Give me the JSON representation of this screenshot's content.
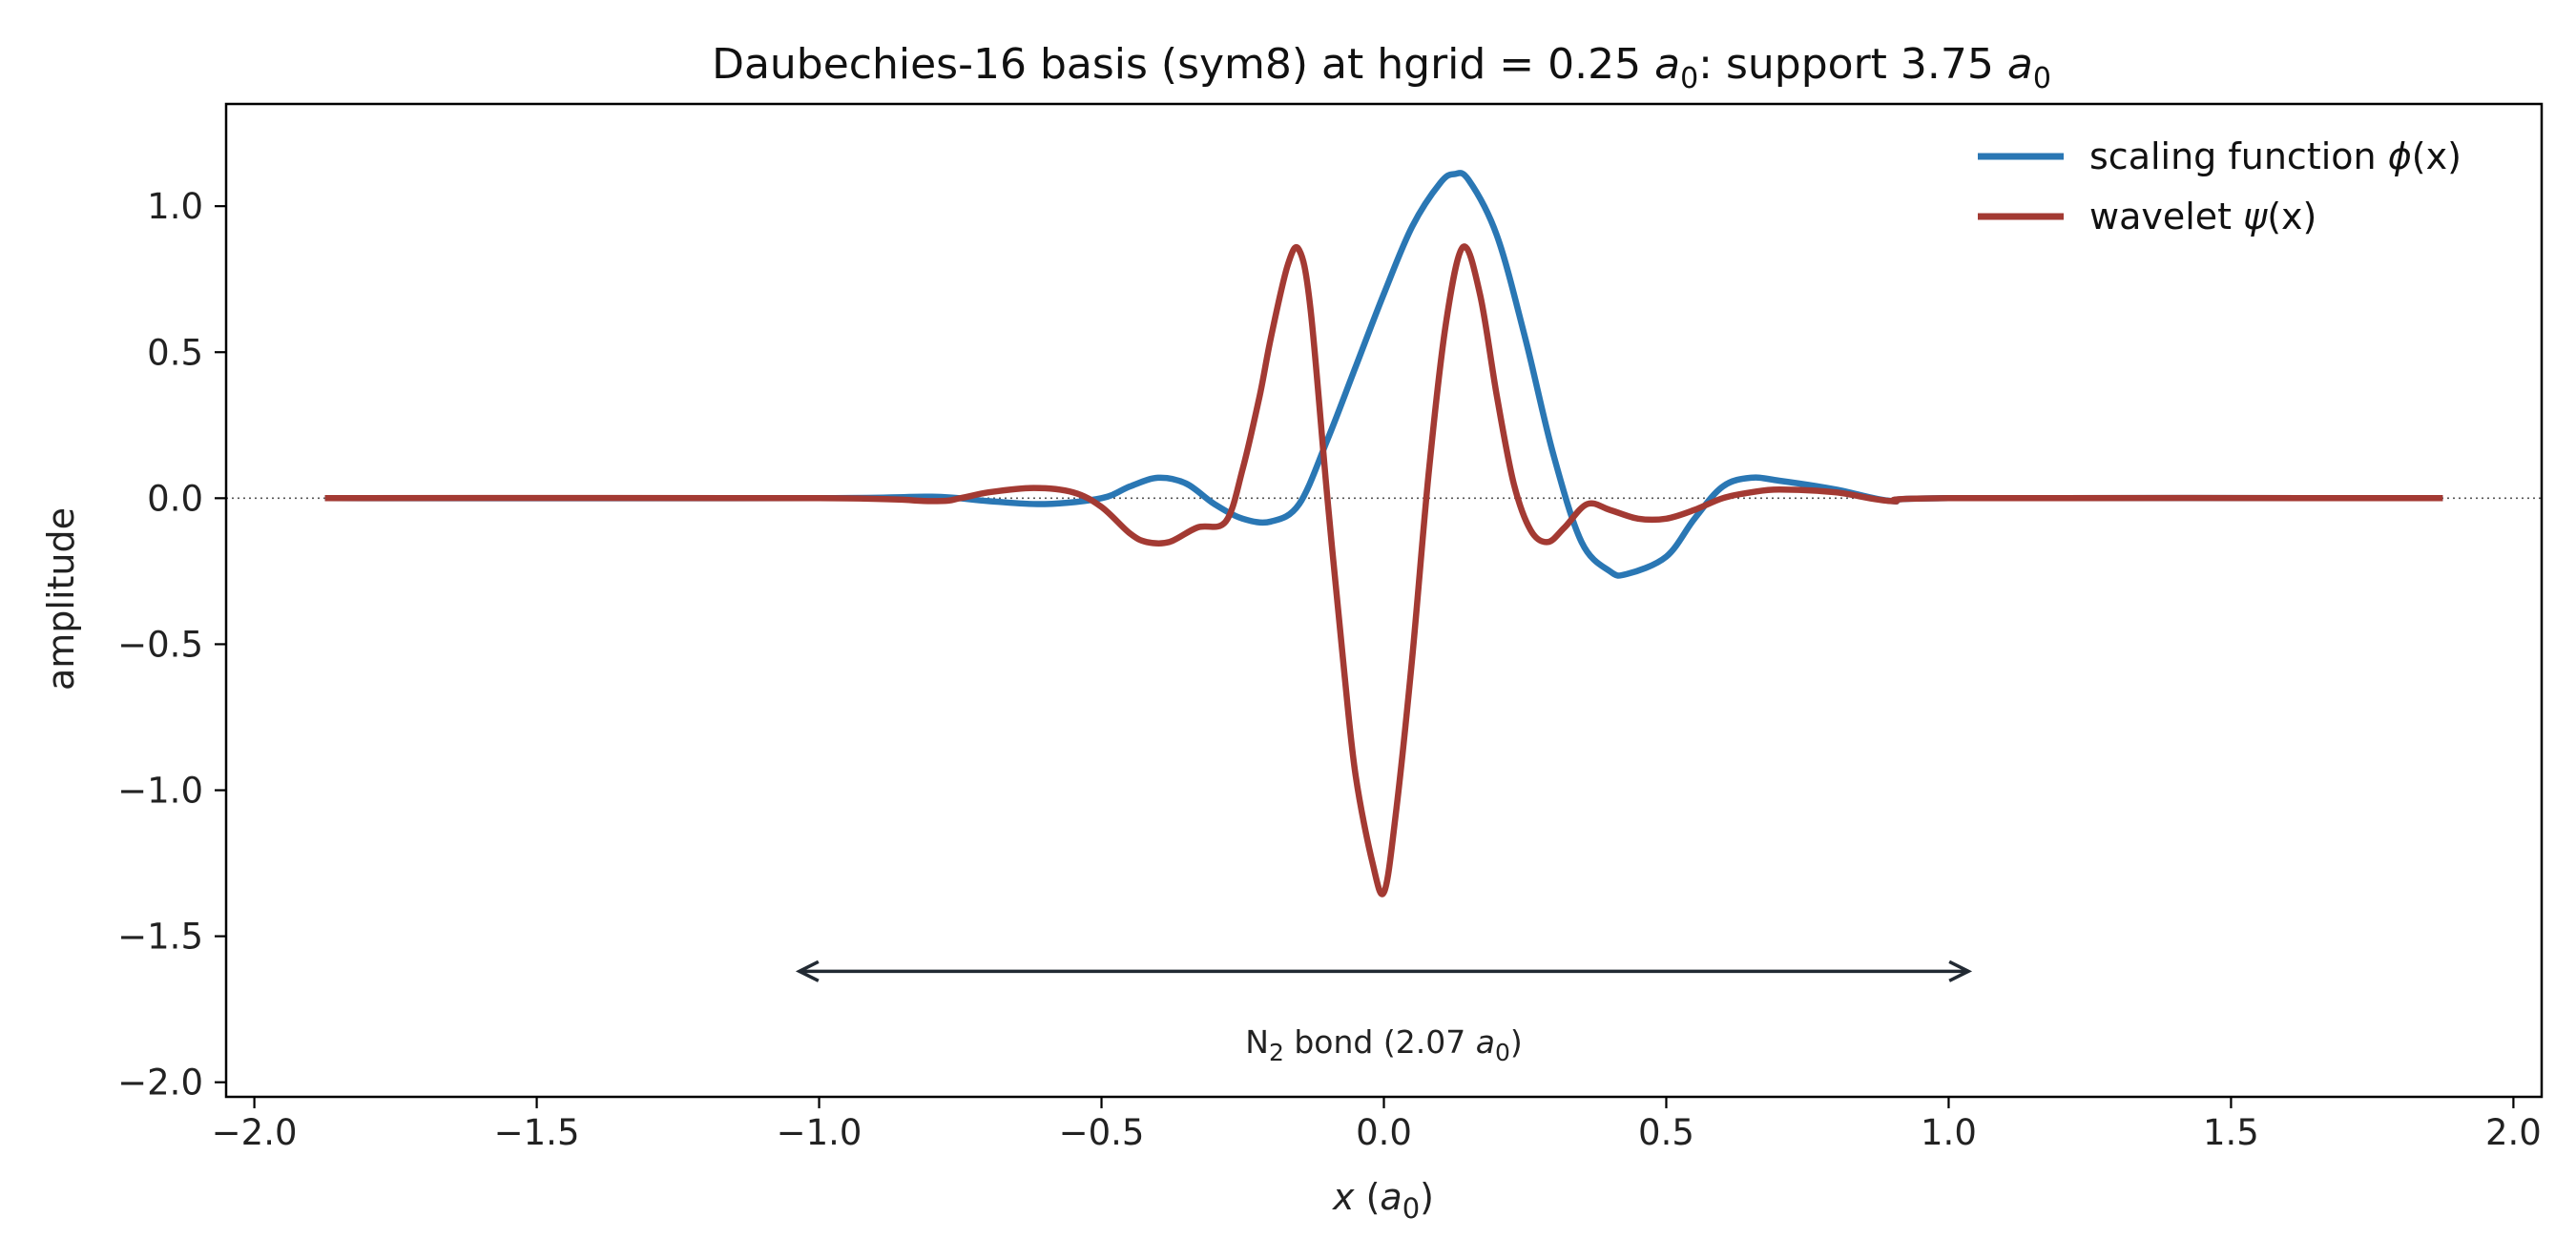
{
  "chart_data": {
    "type": "line",
    "title": {
      "prefix": "Daubechies-16 basis (sym8) at hgrid = 0.25 ",
      "unit_var": "a",
      "unit_sub": "0",
      "middle": ": support 3.75 ",
      "unit_var2": "a",
      "unit_sub2": "0"
    },
    "xlabel": {
      "var": "x",
      "open": " (",
      "unit_var": "a",
      "unit_sub": "0",
      "close": ")"
    },
    "ylabel": "amplitude",
    "xlim": [
      -2.05,
      2.05
    ],
    "ylim": [
      -2.05,
      1.35
    ],
    "x_ticks": [
      -2.0,
      -1.5,
      -1.0,
      -0.5,
      0.0,
      0.5,
      1.0,
      1.5,
      2.0
    ],
    "x_tick_labels": [
      "−2.0",
      "−1.5",
      "−1.0",
      "−0.5",
      "0.0",
      "0.5",
      "1.0",
      "1.5",
      "2.0"
    ],
    "y_ticks": [
      1.0,
      0.5,
      0.0,
      -0.5,
      -1.0,
      -1.5,
      -2.0
    ],
    "y_tick_labels": [
      "1.0",
      "0.5",
      "0.0",
      "−0.5",
      "−1.0",
      "−1.5",
      "−2.0"
    ],
    "grid": false,
    "zero_line": {
      "y": 0.0,
      "style": "dotted",
      "color": "#555555"
    },
    "legend": {
      "placement": "top-right",
      "entries": [
        {
          "text": "scaling function ",
          "symbol": "ϕ",
          "arg": "(x)",
          "color": "#2a77b4"
        },
        {
          "text": "wavelet ",
          "symbol": "ψ",
          "arg": "(x)",
          "color": "#a33a33"
        }
      ]
    },
    "series": [
      {
        "name": "scaling function ϕ(x)",
        "color": "#2a77b4",
        "x": [
          -1.875,
          -1.0,
          -0.8,
          -0.7,
          -0.6,
          -0.5,
          -0.45,
          -0.4,
          -0.35,
          -0.3,
          -0.25,
          -0.2,
          -0.15,
          -0.1,
          -0.05,
          0.0,
          0.05,
          0.1,
          0.125,
          0.15,
          0.2,
          0.25,
          0.3,
          0.35,
          0.4,
          0.43,
          0.5,
          0.55,
          0.6,
          0.65,
          0.7,
          0.8,
          0.9,
          1.0,
          1.875
        ],
        "y": [
          0.0,
          0.0,
          0.005,
          -0.01,
          -0.02,
          0.0,
          0.04,
          0.07,
          0.05,
          -0.02,
          -0.07,
          -0.08,
          -0.02,
          0.2,
          0.45,
          0.7,
          0.93,
          1.08,
          1.11,
          1.09,
          0.9,
          0.55,
          0.15,
          -0.15,
          -0.25,
          -0.26,
          -0.2,
          -0.07,
          0.04,
          0.07,
          0.06,
          0.03,
          -0.01,
          0.0,
          0.0
        ]
      },
      {
        "name": "wavelet ψ(x)",
        "color": "#a33a33",
        "x": [
          -1.875,
          -1.0,
          -0.8,
          -0.75,
          -0.7,
          -0.62,
          -0.55,
          -0.5,
          -0.45,
          -0.42,
          -0.38,
          -0.33,
          -0.28,
          -0.25,
          -0.22,
          -0.2,
          -0.17,
          -0.15,
          -0.13,
          -0.1,
          -0.07,
          -0.05,
          -0.02,
          0.0,
          0.02,
          0.05,
          0.08,
          0.11,
          0.14,
          0.17,
          0.2,
          0.23,
          0.26,
          0.29,
          0.32,
          0.36,
          0.4,
          0.45,
          0.5,
          0.55,
          0.6,
          0.65,
          0.7,
          0.8,
          0.9,
          1.0,
          1.875
        ],
        "y": [
          0.0,
          0.0,
          -0.01,
          0.0,
          0.02,
          0.035,
          0.02,
          -0.03,
          -0.12,
          -0.15,
          -0.15,
          -0.1,
          -0.08,
          0.1,
          0.35,
          0.55,
          0.8,
          0.85,
          0.65,
          0.0,
          -0.6,
          -0.95,
          -1.25,
          -1.35,
          -1.1,
          -0.55,
          0.1,
          0.6,
          0.86,
          0.7,
          0.35,
          0.05,
          -0.11,
          -0.15,
          -0.1,
          -0.02,
          -0.04,
          -0.07,
          -0.07,
          -0.04,
          0.0,
          0.02,
          0.03,
          0.02,
          -0.01,
          0.0,
          0.0
        ]
      }
    ],
    "annotation": {
      "arrow_from_x": -1.035,
      "arrow_to_x": 1.035,
      "arrow_y": -1.62,
      "text_x": 0.0,
      "text_y": -1.86,
      "text": {
        "prefix": "N",
        "sub": "2",
        "middle": " bond (2.07 ",
        "unit_var": "a",
        "unit_sub": "0",
        "suffix": ")"
      },
      "color": "#222a33"
    }
  }
}
